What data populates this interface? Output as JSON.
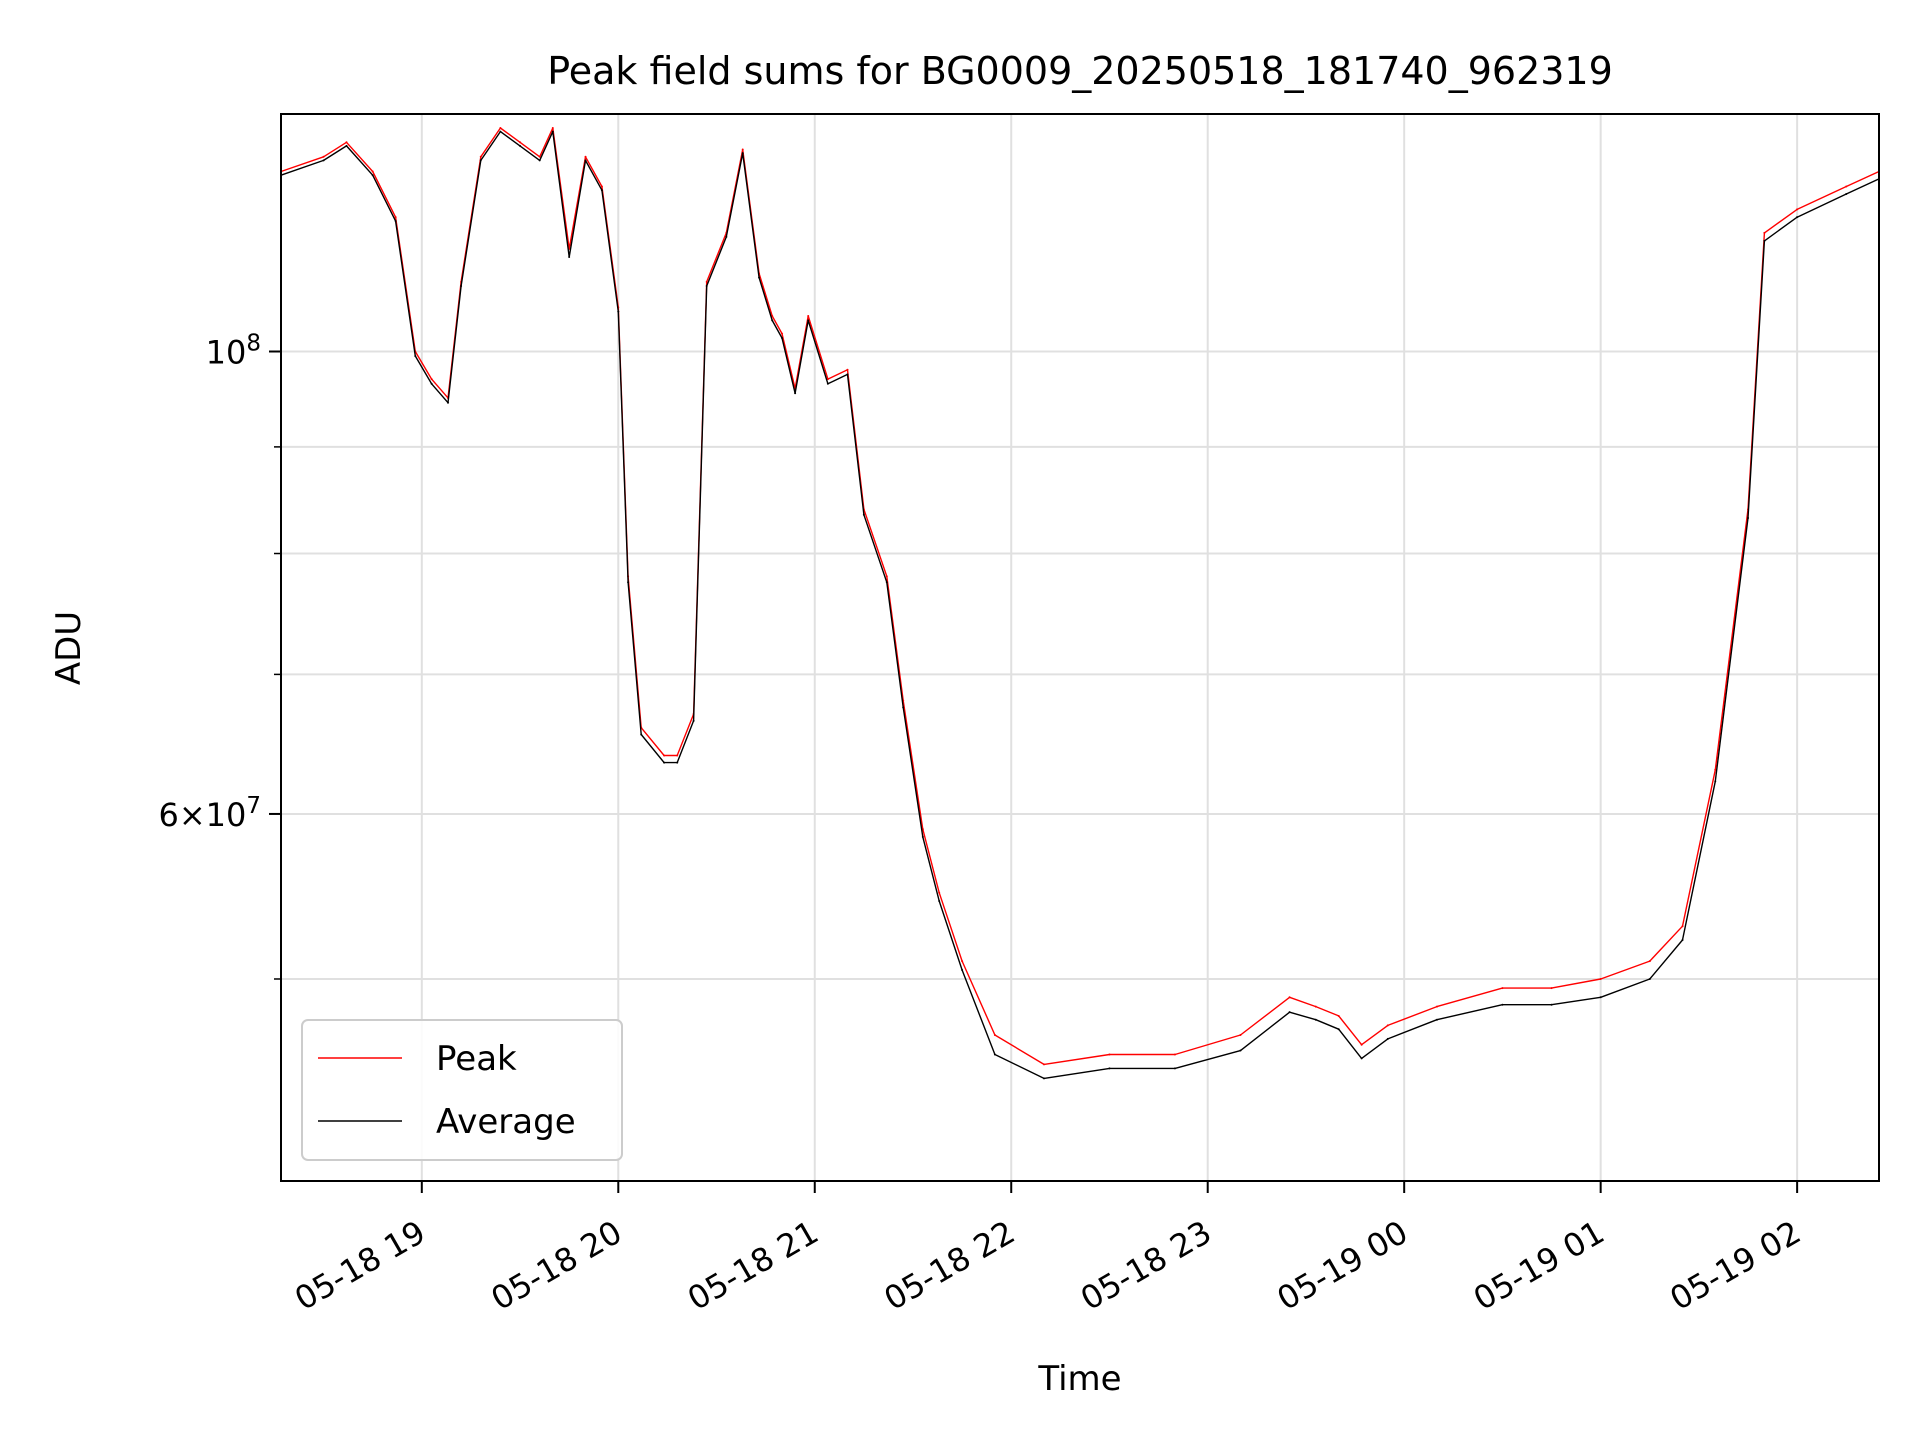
{
  "chart_data": {
    "type": "line",
    "title": "Peak field sums for BG0009_20250518_181740_962319",
    "xlabel": "Time",
    "ylabel": "ADU",
    "yscale": "log",
    "ylim": [
      40000000,
      130000000
    ],
    "xlim": [
      "05-18 18:17",
      "05-19 02:25"
    ],
    "grid": true,
    "legend_position": "lower-left",
    "x_ticks": [
      "05-18 19",
      "05-18 20",
      "05-18 21",
      "05-18 22",
      "05-18 23",
      "05-19 00",
      "05-19 01",
      "05-19 02"
    ],
    "y_tick_labels": [
      {
        "value": 100000000,
        "label": "10^8",
        "mantissa": "",
        "exponent": "8"
      },
      {
        "value": 60000000,
        "label": "6×10^7",
        "mantissa": "6",
        "exponent": "7"
      }
    ],
    "y_minor_ticks": [
      50000000,
      70000000,
      80000000,
      90000000
    ],
    "series": [
      {
        "name": "Peak",
        "color": "#ff0000",
        "x": [
          "05-18 18:17",
          "05-18 18:30",
          "05-18 18:37",
          "05-18 18:45",
          "05-18 18:52",
          "05-18 18:58",
          "05-18 19:03",
          "05-18 19:08",
          "05-18 19:12",
          "05-18 19:18",
          "05-18 19:24",
          "05-18 19:30",
          "05-18 19:36",
          "05-18 19:40",
          "05-18 19:45",
          "05-18 19:50",
          "05-18 19:55",
          "05-18 20:00",
          "05-18 20:03",
          "05-18 20:07",
          "05-18 20:14",
          "05-18 20:18",
          "05-18 20:23",
          "05-18 20:27",
          "05-18 20:33",
          "05-18 20:38",
          "05-18 20:43",
          "05-18 20:47",
          "05-18 20:50",
          "05-18 20:54",
          "05-18 20:58",
          "05-18 21:04",
          "05-18 21:10",
          "05-18 21:15",
          "05-18 21:22",
          "05-18 21:27",
          "05-18 21:33",
          "05-18 21:38",
          "05-18 21:45",
          "05-18 21:55",
          "05-18 22:10",
          "05-18 22:30",
          "05-18 22:50",
          "05-18 23:10",
          "05-18 23:25",
          "05-18 23:33",
          "05-18 23:40",
          "05-18 23:47",
          "05-18 23:55",
          "05-19 00:10",
          "05-19 00:30",
          "05-19 00:45",
          "05-19 01:00",
          "05-19 01:15",
          "05-19 01:25",
          "05-19 01:35",
          "05-19 01:45",
          "05-19 01:50",
          "05-19 02:00",
          "05-19 02:15",
          "05-19 02:25"
        ],
        "values": [
          122000000,
          124000000,
          126000000,
          122000000,
          116000000,
          100000000,
          97000000,
          95000000,
          108000000,
          124000000,
          128000000,
          126000000,
          124000000,
          128000000,
          112000000,
          124000000,
          120000000,
          105000000,
          78000000,
          66000000,
          64000000,
          64000000,
          67000000,
          108000000,
          114000000,
          125000000,
          109000000,
          104000000,
          102000000,
          96000000,
          104000000,
          97000000,
          98000000,
          84000000,
          78000000,
          68000000,
          59000000,
          55000000,
          51000000,
          47000000,
          45500000,
          46000000,
          46000000,
          47000000,
          49000000,
          48500000,
          48000000,
          46500000,
          47500000,
          48500000,
          49500000,
          49500000,
          50000000,
          51000000,
          53000000,
          63000000,
          84000000,
          114000000,
          117000000,
          120000000,
          122000000
        ]
      },
      {
        "name": "Average",
        "color": "#000000",
        "x": [
          "05-18 18:17",
          "05-18 18:30",
          "05-18 18:37",
          "05-18 18:45",
          "05-18 18:52",
          "05-18 18:58",
          "05-18 19:03",
          "05-18 19:08",
          "05-18 19:12",
          "05-18 19:18",
          "05-18 19:24",
          "05-18 19:30",
          "05-18 19:36",
          "05-18 19:40",
          "05-18 19:45",
          "05-18 19:50",
          "05-18 19:55",
          "05-18 20:00",
          "05-18 20:03",
          "05-18 20:07",
          "05-18 20:14",
          "05-18 20:18",
          "05-18 20:23",
          "05-18 20:27",
          "05-18 20:33",
          "05-18 20:38",
          "05-18 20:43",
          "05-18 20:47",
          "05-18 20:50",
          "05-18 20:54",
          "05-18 20:58",
          "05-18 21:04",
          "05-18 21:10",
          "05-18 21:15",
          "05-18 21:22",
          "05-18 21:27",
          "05-18 21:33",
          "05-18 21:38",
          "05-18 21:45",
          "05-18 21:55",
          "05-18 22:10",
          "05-18 22:30",
          "05-18 22:50",
          "05-18 23:10",
          "05-18 23:25",
          "05-18 23:33",
          "05-18 23:40",
          "05-18 23:47",
          "05-18 23:55",
          "05-19 00:10",
          "05-19 00:30",
          "05-19 00:45",
          "05-19 01:00",
          "05-19 01:15",
          "05-19 01:25",
          "05-19 01:35",
          "05-19 01:45",
          "05-19 01:50",
          "05-19 02:00",
          "05-19 02:15",
          "05-19 02:25"
        ],
        "values": [
          121500000,
          123500000,
          125500000,
          121500000,
          115500000,
          99500000,
          96500000,
          94500000,
          107500000,
          123500000,
          127500000,
          125500000,
          123500000,
          127500000,
          111000000,
          123500000,
          119500000,
          104500000,
          77500000,
          65500000,
          63500000,
          63500000,
          66500000,
          107500000,
          113500000,
          124500000,
          108500000,
          103500000,
          101500000,
          95500000,
          103500000,
          96500000,
          97500000,
          83500000,
          77500000,
          67500000,
          58500000,
          54500000,
          50500000,
          46000000,
          44800000,
          45300000,
          45300000,
          46200000,
          48200000,
          47800000,
          47300000,
          45800000,
          46800000,
          47800000,
          48600000,
          48600000,
          49000000,
          50000000,
          52200000,
          62200000,
          83200000,
          113000000,
          116000000,
          119000000,
          121000000
        ]
      }
    ]
  }
}
